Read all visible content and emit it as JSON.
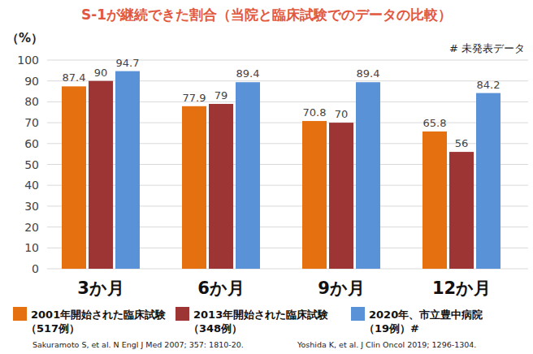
{
  "chart_data": {
    "type": "bar",
    "title": "S-1が継続できた割合（当院と臨床試験でのデータの比較）",
    "y_label": "（%）",
    "annotations": [
      "# 未発表データ",
      "Sakuramoto S, et al. N Engl J Med 2007; 357: 1810-20.",
      "Yoshida K, et al. J Clin Oncol 2019; 1296-1304."
    ],
    "categories": [
      "3か月",
      "6か月",
      "9か月",
      "12か月"
    ],
    "series": [
      {
        "name": "2001年開始された臨床試験\n（517例）",
        "color": "#e5700f",
        "values": [
          87.4,
          77.9,
          70.8,
          65.8
        ]
      },
      {
        "name": "2013年開始された臨床試験\n（348例）",
        "color": "#9e3535",
        "values": [
          90,
          79,
          70,
          56
        ]
      },
      {
        "name": "2020年、市立豊中病院\n（19例）#",
        "color": "#5a92d8",
        "values": [
          94.7,
          89.4,
          89.4,
          84.2
        ]
      }
    ],
    "ylim": [
      0,
      100
    ],
    "yticks": [
      0,
      10,
      20,
      30,
      40,
      50,
      60,
      70,
      80,
      90,
      100
    ],
    "grid": true,
    "data_labels": true,
    "legend": "bottom"
  }
}
